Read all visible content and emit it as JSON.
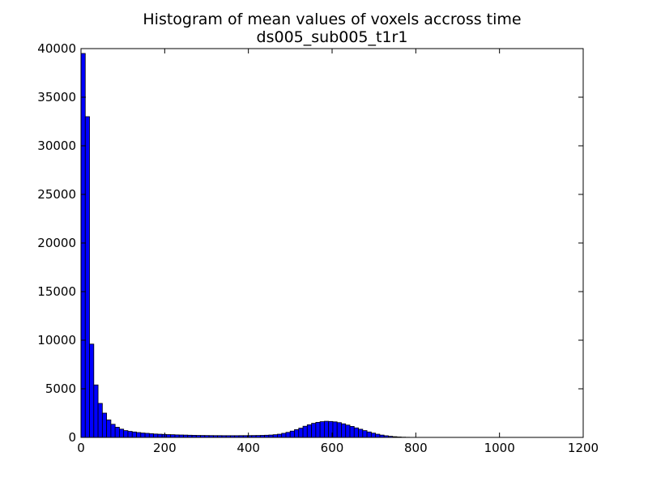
{
  "chart_data": {
    "type": "bar",
    "title": "Histogram of mean values of voxels accross time",
    "subtitle": "ds005_sub005_t1r1",
    "xlabel": "",
    "ylabel": "",
    "xlim": [
      0,
      1200
    ],
    "ylim": [
      0,
      40000
    ],
    "x_ticks": [
      0,
      200,
      400,
      600,
      800,
      1000,
      1200
    ],
    "y_ticks": [
      0,
      5000,
      10000,
      15000,
      20000,
      25000,
      30000,
      35000,
      40000
    ],
    "grid": false,
    "bar_color": "#0000ff",
    "edge_color": "#000000",
    "bin_width": 10.2,
    "bin_start": 0,
    "values": [
      39500,
      33000,
      9600,
      5400,
      3500,
      2500,
      1800,
      1350,
      1050,
      850,
      700,
      620,
      560,
      500,
      450,
      420,
      380,
      350,
      330,
      310,
      290,
      280,
      260,
      250,
      240,
      225,
      215,
      205,
      200,
      195,
      190,
      185,
      185,
      180,
      180,
      180,
      180,
      185,
      185,
      190,
      195,
      200,
      210,
      225,
      245,
      280,
      330,
      420,
      520,
      650,
      800,
      950,
      1150,
      1300,
      1450,
      1550,
      1620,
      1660,
      1640,
      1600,
      1520,
      1400,
      1270,
      1130,
      980,
      840,
      700,
      560,
      440,
      330,
      240,
      170,
      115,
      75,
      45,
      25,
      15,
      8,
      4,
      2
    ]
  }
}
